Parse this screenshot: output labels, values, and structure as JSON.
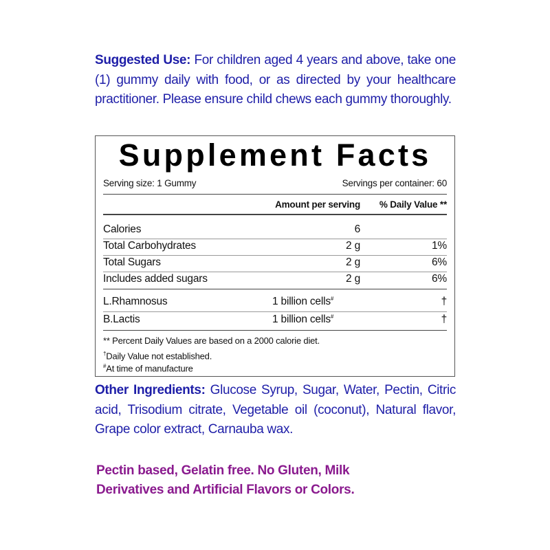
{
  "suggested_use": {
    "label": "Suggested Use:",
    "text": "For children aged 4 years and above, take one (1) gummy daily with food, or as directed by your healthcare practitioner. Please ensure child chews each gummy thoroughly."
  },
  "facts": {
    "title": "Supplement Facts",
    "serving_size": "Serving size: 1 Gummy",
    "servings": "Servings per container: 60",
    "headers": [
      "Amount per serving",
      "% Daily Value **"
    ],
    "nutrients": [
      {
        "name": "Calories",
        "amount": "6"
      },
      {
        "name": "Total Carbohydrates",
        "amount": "2 g",
        "dv": "1%"
      },
      {
        "name": "Total Sugars",
        "amount": "2 g",
        "dv": "6%"
      },
      {
        "name": "Includes added sugars",
        "amount": "2 g",
        "dv": "6%"
      }
    ],
    "probiotics": [
      {
        "name": "L.Rhamnosus",
        "amount": "1 billion cells",
        "mark": "#",
        "dv": "†"
      },
      {
        "name": "B.Lactis",
        "amount": "1 billion cells",
        "mark": "#",
        "dv": "†"
      }
    ],
    "footnotes": [
      {
        "text": "** Percent Daily Values are based on a 2000 calorie diet."
      },
      {
        "symbol": "†",
        "text": "Daily Value not established."
      },
      {
        "symbol": "#",
        "text": "At time of manufacture"
      }
    ]
  },
  "other_ingredients": {
    "label": "Other Ingredients:",
    "text": "Glucose Syrup, Sugar, Water, Pectin, Citric acid, Trisodium citrate, Vegetable oil (coconut), Natural flavor, Grape color extract, Carnauba wax."
  },
  "note": "Pectin based, Gelatin free. No Gluten, Milk Derivatives and Artificial Flavors or Colors."
}
